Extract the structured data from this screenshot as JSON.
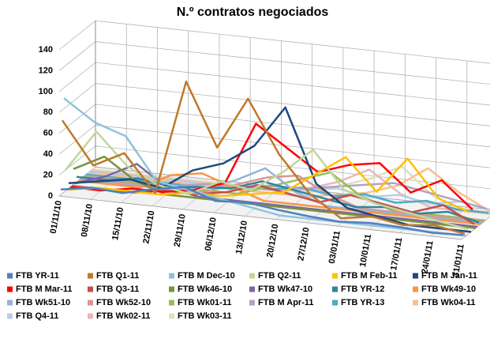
{
  "chart_data": {
    "type": "line",
    "title": "N.º contratos negociados",
    "categories": [
      "01/11/10",
      "08/11/10",
      "15/11/10",
      "22/11/10",
      "29/11/10",
      "06/12/10",
      "13/12/10",
      "20/12/10",
      "27/12/10",
      "03/01/11",
      "10/01/11",
      "17/01/11",
      "24/01/11",
      "31/01/11"
    ],
    "ylim": [
      0,
      140
    ],
    "yticks": [
      0,
      20,
      40,
      60,
      80,
      100,
      120,
      140
    ],
    "grid": true,
    "series": [
      {
        "name": "FTB YR-11",
        "color": "#4f81bd",
        "values": [
          5,
          10,
          8,
          15,
          20,
          10,
          12,
          8,
          5,
          3,
          5,
          4,
          2,
          3
        ]
      },
      {
        "name": "FTB Q1-11",
        "color": "#c0782a",
        "values": [
          70,
          30,
          45,
          10,
          120,
          60,
          110,
          60,
          25,
          5,
          10,
          5,
          8,
          3
        ]
      },
      {
        "name": "FTB M Dec-10",
        "color": "#8fc3dc",
        "values": [
          90,
          70,
          60,
          20,
          15,
          10,
          5,
          0,
          0,
          0,
          0,
          0,
          0,
          0
        ]
      },
      {
        "name": "FTB Q2-11",
        "color": "#c3d69b",
        "values": [
          20,
          60,
          30,
          15,
          10,
          25,
          20,
          40,
          65,
          30,
          20,
          15,
          10,
          5
        ]
      },
      {
        "name": "FTB M Feb-11",
        "color": "#ffc000",
        "values": [
          0,
          5,
          5,
          5,
          10,
          10,
          15,
          20,
          40,
          60,
          30,
          65,
          30,
          20
        ]
      },
      {
        "name": "FTB M Jan-11",
        "color": "#1f497d",
        "values": [
          5,
          10,
          15,
          10,
          30,
          40,
          60,
          100,
          30,
          10,
          5,
          0,
          0,
          0
        ]
      },
      {
        "name": "FTB M Mar-11",
        "color": "#ff0000",
        "values": [
          0,
          0,
          5,
          5,
          10,
          20,
          80,
          60,
          40,
          50,
          55,
          30,
          45,
          20
        ]
      },
      {
        "name": "FTB Q3-11",
        "color": "#c0504d",
        "values": [
          0,
          0,
          0,
          5,
          5,
          10,
          20,
          15,
          10,
          20,
          15,
          10,
          20,
          5
        ]
      },
      {
        "name": "FTB Wk46-10",
        "color": "#77933c",
        "values": [
          15,
          30,
          10,
          0,
          0,
          0,
          0,
          0,
          0,
          0,
          0,
          0,
          0,
          0
        ]
      },
      {
        "name": "FTB Wk47-10",
        "color": "#8064a2",
        "values": [
          0,
          10,
          25,
          5,
          0,
          0,
          0,
          0,
          0,
          0,
          0,
          0,
          0,
          0
        ]
      },
      {
        "name": "FTB YR-12",
        "color": "#31859c",
        "values": [
          5,
          5,
          10,
          5,
          8,
          10,
          20,
          15,
          10,
          5,
          8,
          5,
          10,
          3
        ]
      },
      {
        "name": "FTB Wk49-10",
        "color": "#f79646",
        "values": [
          0,
          0,
          0,
          15,
          20,
          10,
          0,
          0,
          0,
          0,
          0,
          0,
          0,
          0
        ]
      },
      {
        "name": "FTB Wk51-10",
        "color": "#95b3d7",
        "values": [
          0,
          0,
          0,
          0,
          5,
          15,
          30,
          10,
          0,
          0,
          0,
          0,
          0,
          0
        ]
      },
      {
        "name": "FTB Wk52-10",
        "color": "#d99694",
        "values": [
          0,
          0,
          0,
          0,
          0,
          10,
          20,
          25,
          10,
          0,
          0,
          0,
          0,
          0
        ]
      },
      {
        "name": "FTB Wk01-11",
        "color": "#9bbb59",
        "values": [
          0,
          0,
          0,
          0,
          0,
          0,
          10,
          20,
          30,
          10,
          0,
          0,
          0,
          0
        ]
      },
      {
        "name": "FTB M Apr-11",
        "color": "#b3a2c7",
        "values": [
          0,
          0,
          0,
          0,
          5,
          5,
          10,
          10,
          15,
          20,
          25,
          20,
          15,
          10
        ]
      },
      {
        "name": "FTB YR-13",
        "color": "#4bacc6",
        "values": [
          0,
          0,
          0,
          0,
          0,
          5,
          5,
          10,
          5,
          10,
          5,
          10,
          5,
          5
        ]
      },
      {
        "name": "FTB Wk04-11",
        "color": "#fabf8f",
        "values": [
          0,
          0,
          0,
          0,
          0,
          0,
          0,
          0,
          5,
          10,
          20,
          40,
          20,
          5
        ]
      },
      {
        "name": "FTB Q4-11",
        "color": "#b9cde5",
        "values": [
          0,
          0,
          0,
          0,
          0,
          0,
          5,
          5,
          10,
          5,
          10,
          5,
          10,
          5
        ]
      },
      {
        "name": "FTB Wk02-11",
        "color": "#e6b9b8",
        "values": [
          0,
          0,
          0,
          0,
          0,
          0,
          0,
          5,
          15,
          30,
          10,
          0,
          0,
          0
        ]
      },
      {
        "name": "FTB Wk03-11",
        "color": "#d7e4bd",
        "values": [
          0,
          0,
          0,
          0,
          0,
          0,
          0,
          0,
          10,
          20,
          35,
          10,
          0,
          0
        ]
      }
    ]
  }
}
